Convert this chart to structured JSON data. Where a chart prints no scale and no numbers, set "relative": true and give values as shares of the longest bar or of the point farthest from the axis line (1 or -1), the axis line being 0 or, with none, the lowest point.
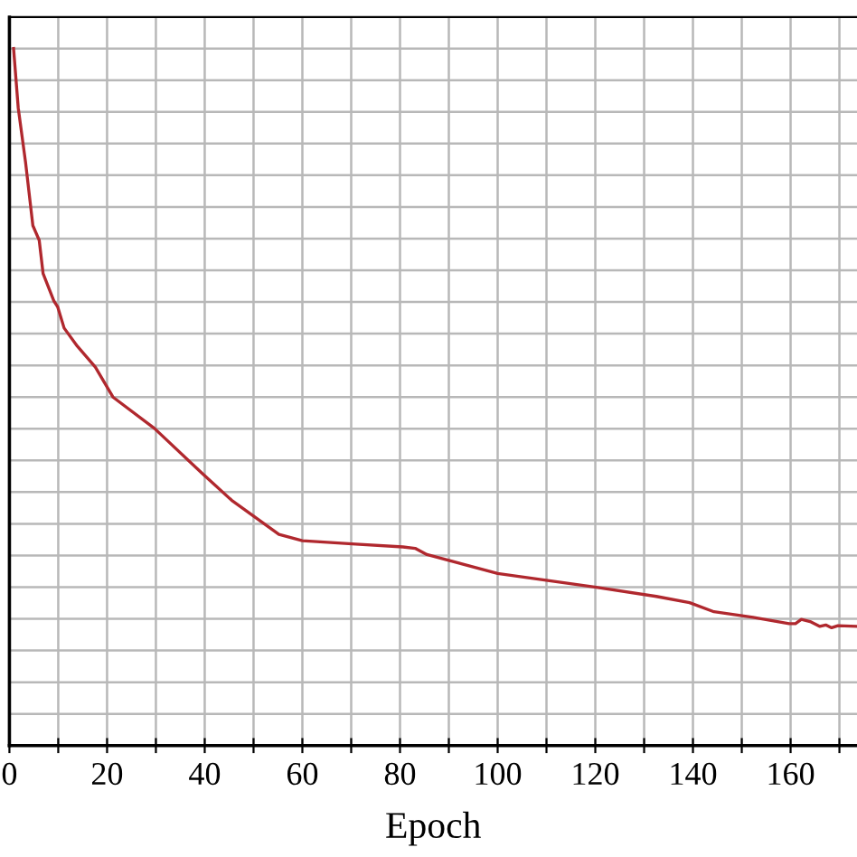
{
  "chart_data": {
    "type": "line",
    "xlabel": "Epoch",
    "relative": true,
    "grid": true,
    "marker": "none",
    "line_style": "solid",
    "xlim": [
      0,
      173.6
    ],
    "xticks": [
      0,
      {
        "value": 10,
        "label": null
      },
      20,
      {
        "value": 30,
        "label": null
      },
      40,
      {
        "value": 50,
        "label": null
      },
      60,
      {
        "value": 70,
        "label": null
      },
      80,
      {
        "value": 90,
        "label": null
      },
      100,
      {
        "value": 110,
        "label": null
      },
      120,
      {
        "value": 130,
        "label": null
      },
      140,
      {
        "value": 150,
        "label": null
      },
      160,
      {
        "value": 170,
        "label": null
      }
    ],
    "tick_labels": "x",
    "series": [
      {
        "color": "#b0282e",
        "x": [
          0.85,
          1.8,
          3.3,
          4.8,
          6.1,
          6.9,
          9.1,
          9.9,
          11.2,
          13.9,
          17.6,
          21.2,
          29.7,
          39.4,
          45.5,
          55.2,
          60,
          70.9,
          80.6,
          83.1,
          85.5,
          100,
          120.2,
          132.5,
          139.3,
          144.3,
          152.3,
          159.7,
          161,
          162.2,
          164,
          166,
          167.2,
          168.4,
          169.7,
          173.6
        ],
        "values": [
          1.0,
          0.915,
          0.837,
          0.746,
          0.725,
          0.677,
          0.638,
          0.629,
          0.599,
          0.573,
          0.543,
          0.5,
          0.455,
          0.391,
          0.352,
          0.303,
          0.294,
          0.289,
          0.285,
          0.283,
          0.274,
          0.247,
          0.227,
          0.214,
          0.205,
          0.192,
          0.184,
          0.175,
          0.175,
          0.181,
          0.178,
          0.171,
          0.173,
          0.169,
          0.172,
          0.171
        ]
      }
    ]
  }
}
